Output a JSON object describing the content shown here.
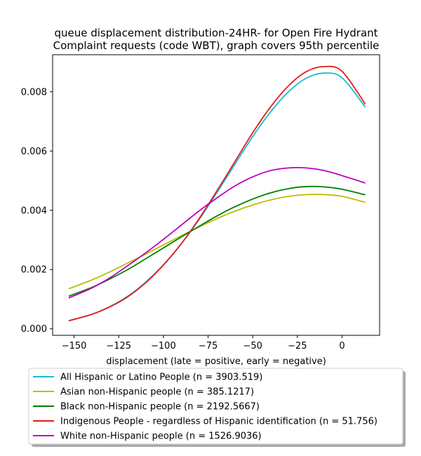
{
  "chart_data": {
    "type": "line",
    "title_lines": [
      "queue displacement distribution-24HR-  for Open Fire Hydrant",
      "Complaint  requests (code WBT), graph covers 95th percentile"
    ],
    "xlabel": "displacement (late = positive, early = negative)",
    "ylabel": "",
    "xlim": [
      -162,
      21
    ],
    "ylim": [
      -0.00022,
      0.00925
    ],
    "x_ticks": [
      -150,
      -125,
      -100,
      -75,
      -50,
      -25,
      0
    ],
    "x_tick_labels": [
      "−150",
      "−125",
      "−100",
      "−75",
      "−50",
      "−25",
      "0"
    ],
    "y_ticks": [
      0.0,
      0.002,
      0.004,
      0.006,
      0.008
    ],
    "y_tick_labels": [
      "0.000",
      "0.002",
      "0.004",
      "0.006",
      "0.008"
    ],
    "grid": false,
    "legend_position": "below plot",
    "x": [
      -153,
      -140,
      -130,
      -120,
      -110,
      -100,
      -90,
      -80,
      -70,
      -60,
      -50,
      -40,
      -30,
      -20,
      -10,
      0,
      13
    ],
    "series": [
      {
        "name": "All Hispanic or Latino People (n = 3903.519)",
        "color": "#17becf",
        "values": [
          0.00027,
          0.00049,
          0.00075,
          0.0011,
          0.00157,
          0.00216,
          0.00287,
          0.00369,
          0.0046,
          0.00555,
          0.00649,
          0.00732,
          0.008,
          0.00846,
          0.00863,
          0.00847,
          0.00748
        ]
      },
      {
        "name": "Asian non-Hispanic people (n = 385.1217)",
        "color": "#bcbd00",
        "values": [
          0.00135,
          0.00165,
          0.00192,
          0.00222,
          0.00252,
          0.00283,
          0.00314,
          0.00344,
          0.00372,
          0.00397,
          0.00418,
          0.00435,
          0.00447,
          0.00453,
          0.00453,
          0.00447,
          0.00427
        ]
      },
      {
        "name": "Black non-Hispanic people (n = 2192.5667)",
        "color": "#008000",
        "values": [
          0.0011,
          0.0014,
          0.00168,
          0.002,
          0.00236,
          0.00273,
          0.0031,
          0.00346,
          0.00381,
          0.00412,
          0.00438,
          0.00459,
          0.00473,
          0.0048,
          0.00479,
          0.00471,
          0.00452
        ]
      },
      {
        "name": "Indigenous People - regardless of Hispanic identification (n = 51.756)",
        "color": "#e41a1c",
        "values": [
          0.00027,
          0.00049,
          0.00074,
          0.00108,
          0.00155,
          0.00215,
          0.00287,
          0.00372,
          0.00466,
          0.00564,
          0.00662,
          0.00749,
          0.0082,
          0.00868,
          0.00885,
          0.00869,
          0.00758
        ]
      },
      {
        "name": "White non-Hispanic people (n = 1526.9036)",
        "color": "#bf00bf",
        "values": [
          0.00104,
          0.00138,
          0.00172,
          0.00213,
          0.00256,
          0.00302,
          0.0035,
          0.00398,
          0.00442,
          0.00482,
          0.00513,
          0.00534,
          0.00543,
          0.00543,
          0.00534,
          0.00517,
          0.00492
        ]
      }
    ]
  }
}
